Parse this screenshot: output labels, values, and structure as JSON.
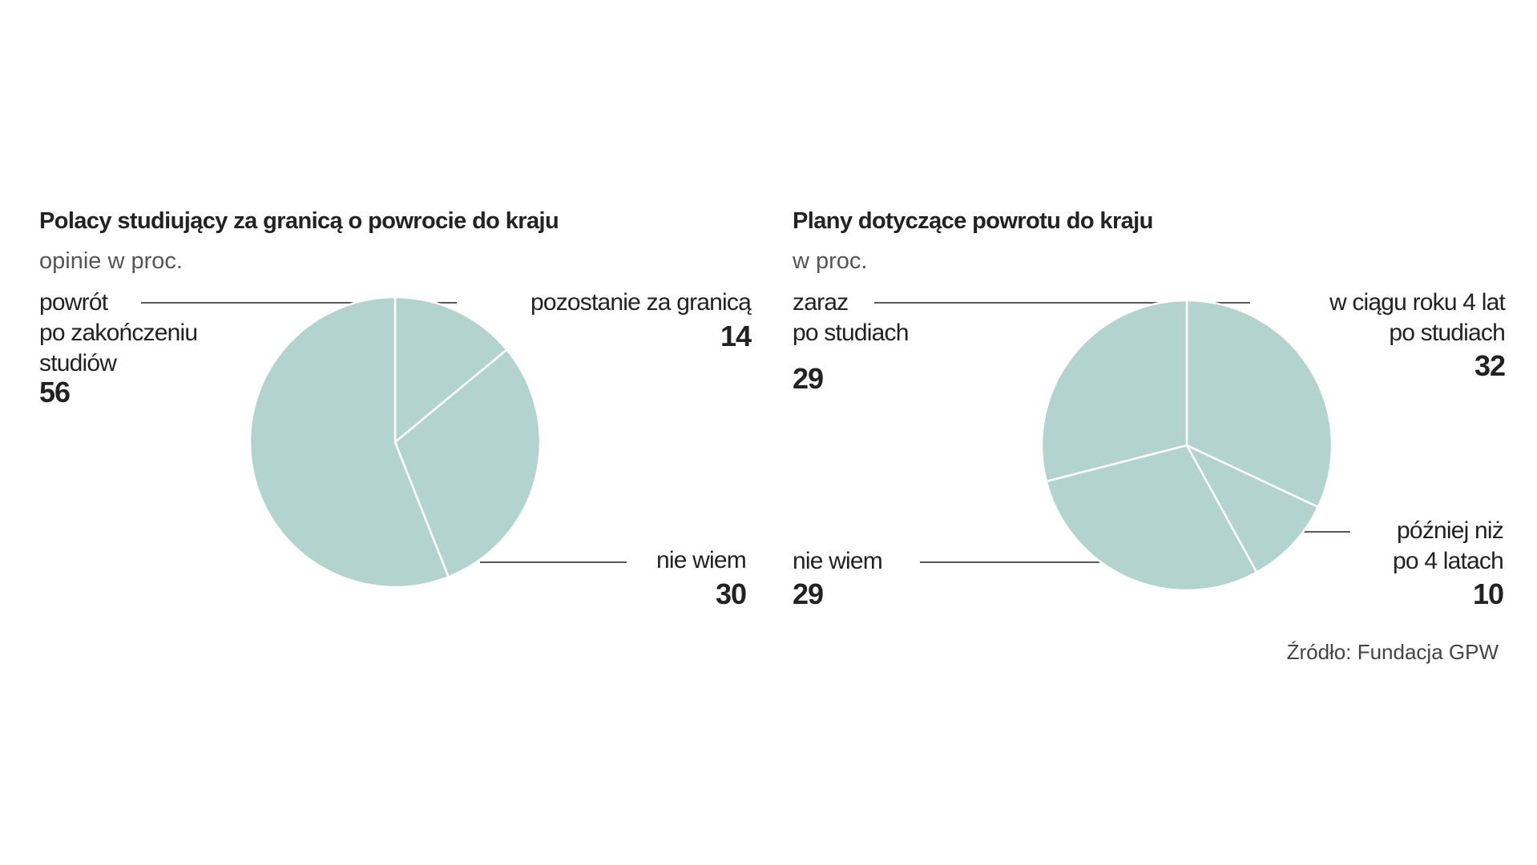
{
  "chart_data": [
    {
      "type": "pie",
      "title": "Polacy studiujący za granicą o powrocie do kraju",
      "subtitle": "opinie w proc.",
      "categories": [
        "pozostanie za granicą",
        "nie wiem",
        "powrót\npo zakończeniu\nstudiów"
      ],
      "values": [
        14,
        30,
        56
      ],
      "color": "#b3d4ce"
    },
    {
      "type": "pie",
      "title": "Plany dotyczące powrotu do kraju",
      "subtitle": "w proc.",
      "categories": [
        "w ciągu roku 4 lat\npo studiach",
        "później niż\npo 4 latach",
        "nie wiem",
        "zaraz\npo studiach"
      ],
      "values": [
        32,
        10,
        29,
        29
      ],
      "color": "#b3d4ce"
    }
  ],
  "source": "Źródło: Fundacja GPW"
}
